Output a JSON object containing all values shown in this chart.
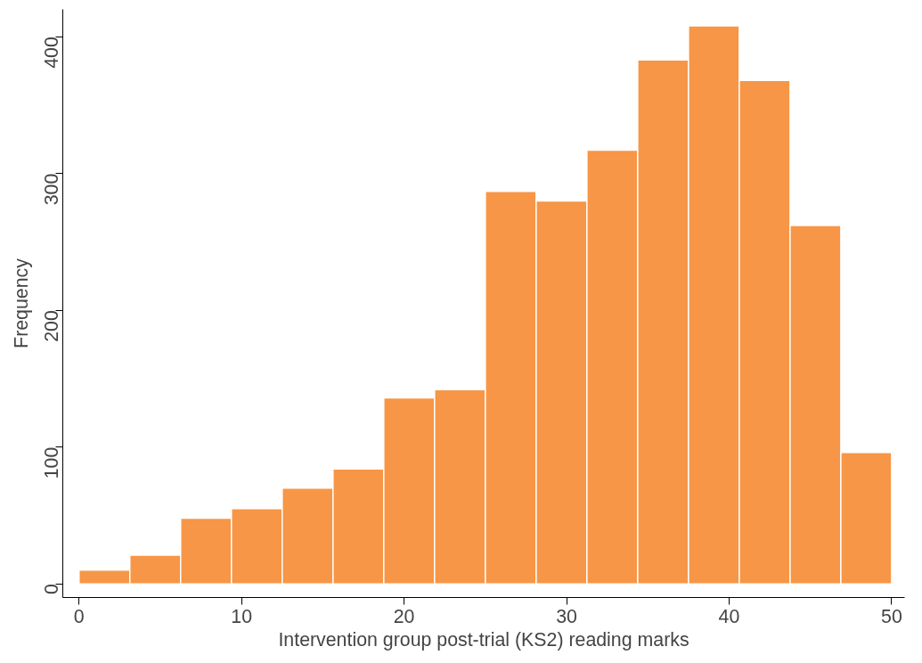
{
  "chart_data": {
    "type": "histogram",
    "xlabel": "Intervention group post-trial (KS2) reading marks",
    "ylabel": "Frequency",
    "bins": [
      0,
      3.125,
      6.25,
      9.375,
      12.5,
      15.625,
      18.75,
      21.875,
      25,
      28.125,
      31.25,
      34.375,
      37.5,
      40.625,
      43.75,
      46.875,
      50
    ],
    "values": [
      10,
      21,
      48,
      55,
      70,
      84,
      136,
      142,
      287,
      280,
      317,
      383,
      408,
      368,
      262,
      96
    ],
    "color": "#f79646",
    "xlim": [
      -1,
      50.8
    ],
    "ylim": [
      -10,
      420
    ],
    "xticks": [
      0,
      10,
      20,
      30,
      40,
      50
    ],
    "yticks": [
      0,
      100,
      200,
      300,
      400
    ],
    "grid": false
  }
}
